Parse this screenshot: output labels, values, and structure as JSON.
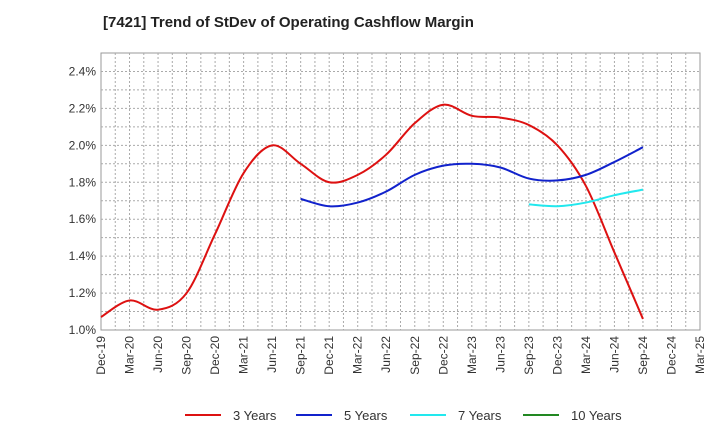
{
  "title": "[7421]  Trend of StDev of Operating Cashflow Margin",
  "chart_data": {
    "type": "line",
    "title": "[7421]  Trend of StDev of Operating Cashflow Margin",
    "xlabel": "",
    "ylabel": "",
    "ylim": [
      1.0,
      2.5
    ],
    "y_ticks": [
      "1.0%",
      "1.2%",
      "1.4%",
      "1.6%",
      "1.8%",
      "2.0%",
      "2.2%",
      "2.4%"
    ],
    "y_tick_values": [
      1.0,
      1.2,
      1.4,
      1.6,
      1.8,
      2.0,
      2.2,
      2.4
    ],
    "categories": [
      "Dec-19",
      "Mar-20",
      "Jun-20",
      "Sep-20",
      "Dec-20",
      "Mar-21",
      "Jun-21",
      "Sep-21",
      "Dec-21",
      "Mar-22",
      "Jun-22",
      "Sep-22",
      "Dec-22",
      "Mar-23",
      "Jun-23",
      "Sep-23",
      "Dec-23",
      "Mar-24",
      "Jun-24",
      "Sep-24",
      "Dec-24",
      "Mar-25"
    ],
    "grid": true,
    "legend_position": "bottom",
    "series": [
      {
        "name": "3 Years",
        "color": "#dd1111",
        "values": [
          1.07,
          1.16,
          1.11,
          1.2,
          1.52,
          1.85,
          2.0,
          1.9,
          1.8,
          1.84,
          1.95,
          2.12,
          2.22,
          2.16,
          2.15,
          2.11,
          2.0,
          1.78,
          1.42,
          1.06,
          null,
          null
        ]
      },
      {
        "name": "5 Years",
        "color": "#1122cc",
        "values": [
          null,
          null,
          null,
          null,
          null,
          null,
          null,
          1.71,
          1.67,
          1.69,
          1.75,
          1.84,
          1.89,
          1.9,
          1.88,
          1.82,
          1.81,
          1.84,
          1.91,
          1.99,
          null,
          null
        ]
      },
      {
        "name": "7 Years",
        "color": "#22e8ee",
        "values": [
          null,
          null,
          null,
          null,
          null,
          null,
          null,
          null,
          null,
          null,
          null,
          null,
          null,
          null,
          null,
          1.68,
          1.67,
          1.69,
          1.73,
          1.76,
          null,
          null
        ]
      },
      {
        "name": "10 Years",
        "color": "#228822",
        "values": [
          null,
          null,
          null,
          null,
          null,
          null,
          null,
          null,
          null,
          null,
          null,
          null,
          null,
          null,
          null,
          null,
          null,
          null,
          null,
          null,
          null,
          null
        ]
      }
    ]
  }
}
